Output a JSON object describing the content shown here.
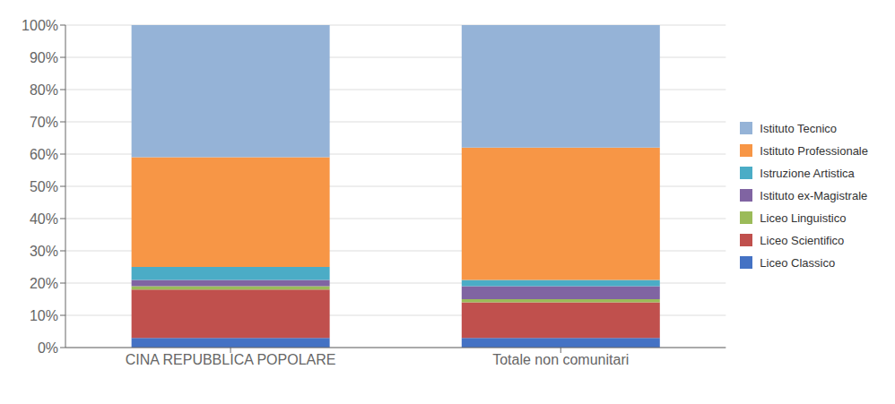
{
  "chart_data": {
    "type": "bar",
    "stacked": true,
    "categories": [
      "CINA REPUBBLICA POPOLARE",
      "Totale non comunitari"
    ],
    "series": [
      {
        "name": "Liceo Classico",
        "color": "#4472C4",
        "values": [
          3.0,
          3.0
        ]
      },
      {
        "name": "Liceo Scientifico",
        "color": "#C0504D",
        "values": [
          15.0,
          11.0
        ]
      },
      {
        "name": "Liceo Linguistico",
        "color": "#9BBB59",
        "values": [
          1.0,
          1.0
        ]
      },
      {
        "name": "Istituto ex-Magistrale",
        "color": "#8064A2",
        "values": [
          2.0,
          4.0
        ]
      },
      {
        "name": "Istruzione Artistica",
        "color": "#4BACC6",
        "values": [
          4.0,
          2.0
        ]
      },
      {
        "name": "Istituto Professionale",
        "color": "#F79646",
        "values": [
          34.0,
          41.0
        ]
      },
      {
        "name": "Istituto Tecnico",
        "color": "#95B3D7",
        "values": [
          41.0,
          38.0
        ]
      }
    ],
    "ylim": [
      0,
      100
    ],
    "yticks": [
      {
        "value": 0,
        "label": "0%"
      },
      {
        "value": 10,
        "label": "10%"
      },
      {
        "value": 20,
        "label": "20%"
      },
      {
        "value": 30,
        "label": "30%"
      },
      {
        "value": 40,
        "label": "40%"
      },
      {
        "value": 50,
        "label": "50%"
      },
      {
        "value": 60,
        "label": "60%"
      },
      {
        "value": 70,
        "label": "70%"
      },
      {
        "value": 80,
        "label": "80%"
      },
      {
        "value": 90,
        "label": "90%"
      },
      {
        "value": 100,
        "label": "100%"
      }
    ],
    "grid": true,
    "legend": "right"
  }
}
